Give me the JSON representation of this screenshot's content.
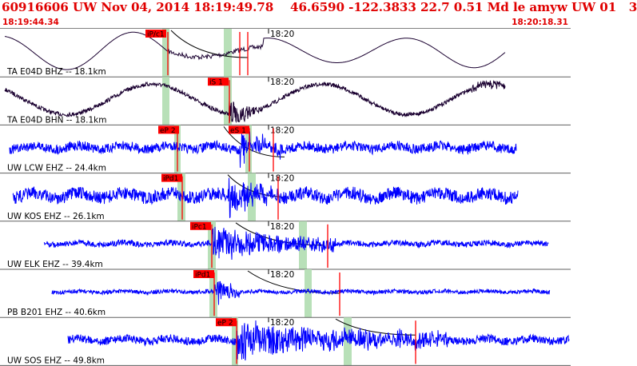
{
  "header": {
    "event_line": "60916606 UW Nov 04, 2014 18:19:49.78    46.6590 -122.3833 22.7 0.51 Md le amyw UW 01   3",
    "time_start": "18:19:44.34",
    "time_end": "18:20:18.31"
  },
  "tick_label": "18:20",
  "colors": {
    "header_text": "#e00000",
    "trace_horizontal": "#1a0030",
    "trace_vertical": "#0000ff",
    "pick_box": "#ff0000",
    "pick_window": "#b8e0b8",
    "moveout_curve": "#000000"
  },
  "channels": [
    {
      "label": "TA E04D BHZ -- 18.1km",
      "pick": "iP/c1",
      "pick2": ""
    },
    {
      "label": "TA E04D BHN -- 18.1km",
      "pick": "",
      "pick2": "iS 1"
    },
    {
      "label": "UW LCW EHZ -- 24.4km",
      "pick": "eP 2",
      "pick2": "eS 1"
    },
    {
      "label": "UW KOS EHZ -- 26.1km",
      "pick": "iPd1",
      "pick2": ""
    },
    {
      "label": "UW ELK EHZ -- 39.4km",
      "pick": "iPc1",
      "pick2": ""
    },
    {
      "label": "PB B201 EHZ -- 40.6km",
      "pick": "iPd1",
      "pick2": ""
    },
    {
      "label": "UW SOS EHZ -- 49.8km",
      "pick": "eP 2",
      "pick2": ""
    }
  ]
}
